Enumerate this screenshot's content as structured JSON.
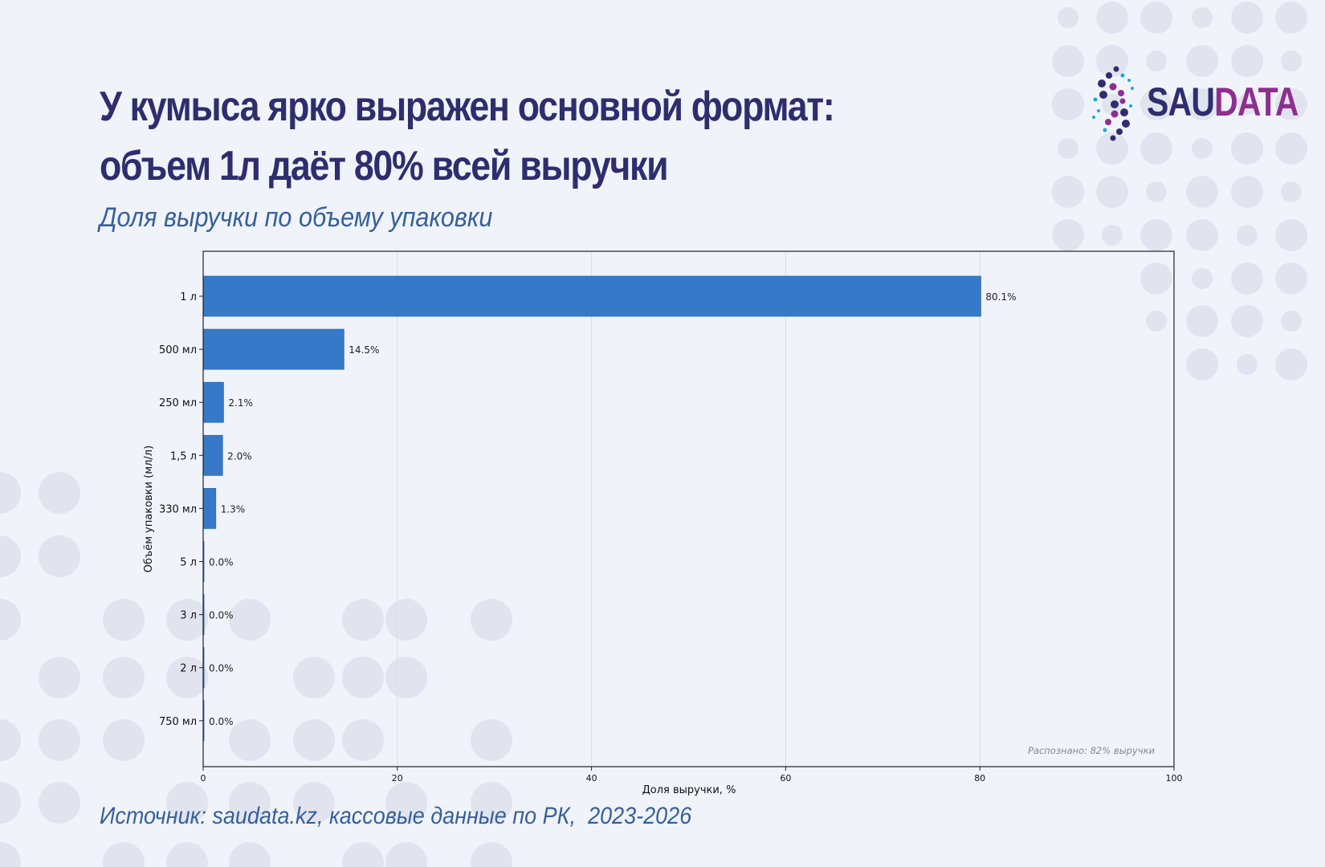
{
  "header": {
    "title": "У кумыса ярко выражен основной формат: объем 1л даёт 80% всей выручки",
    "subtitle": "Доля выручки по объему упаковки"
  },
  "footer": {
    "source": "Источник: saudata.kz, кассовые данные по РК,  2023-2026"
  },
  "logo": {
    "part1": "SAU",
    "part2": "DATA"
  },
  "colors": {
    "bar": "#3679c8",
    "title": "#2e2e6e",
    "accent": "#36609a",
    "logo_purple": "#8e2e8e"
  },
  "chart_data": {
    "type": "bar",
    "orientation": "horizontal",
    "categories": [
      "1 л",
      "500 мл",
      "250 мл",
      "1,5 л",
      "330 мл",
      "5 л",
      "3 л",
      "2 л",
      "750 мл"
    ],
    "values": [
      80.1,
      14.5,
      2.1,
      2.0,
      1.3,
      0.0,
      0.0,
      0.0,
      0.0
    ],
    "value_labels": [
      "80.1%",
      "14.5%",
      "2.1%",
      "2.0%",
      "1.3%",
      "0.0%",
      "0.0%",
      "0.0%",
      "0.0%"
    ],
    "xlabel": "Доля выручки, %",
    "ylabel": "Объём упаковки (мл/л)",
    "xlim": [
      0,
      100
    ],
    "xticks": [
      0,
      20,
      40,
      60,
      80,
      100
    ],
    "grid": "vertical",
    "annotation": "Распознано: 82% выручки"
  }
}
